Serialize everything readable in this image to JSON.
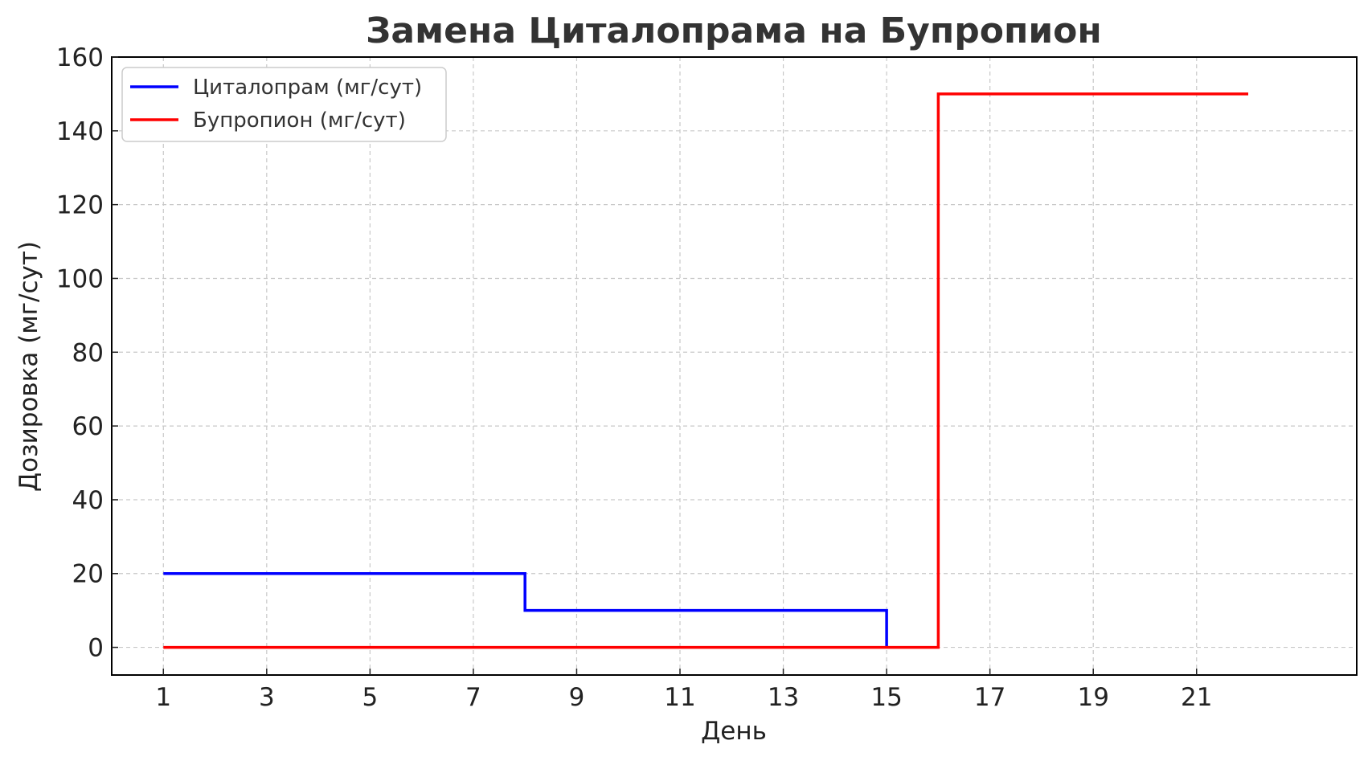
{
  "chart_data": {
    "type": "line",
    "title": "Замена Циталопрама на Бупропион",
    "xlabel": "День",
    "ylabel": "Дозировка (мг/сут)",
    "xlim": [
      0,
      24.1
    ],
    "ylim": [
      -7.5,
      160
    ],
    "xticks": [
      1,
      3,
      5,
      7,
      9,
      11,
      13,
      15,
      17,
      19,
      21
    ],
    "yticks": [
      0,
      20,
      40,
      60,
      80,
      100,
      120,
      140,
      160
    ],
    "grid": true,
    "legend_position": "top-left",
    "step_where": "post",
    "series": [
      {
        "name": "Циталопрам (мг/сут)",
        "color": "#0000ff",
        "x": [
          1,
          2,
          3,
          4,
          5,
          6,
          7,
          8,
          9,
          10,
          11,
          12,
          13,
          14,
          15
        ],
        "y": [
          20,
          20,
          20,
          20,
          20,
          20,
          20,
          10,
          10,
          10,
          10,
          10,
          10,
          10,
          0
        ]
      },
      {
        "name": "Бупропион (мг/сут)",
        "color": "#ff0000",
        "x": [
          1,
          2,
          3,
          4,
          5,
          6,
          7,
          8,
          9,
          10,
          11,
          12,
          13,
          14,
          15,
          16,
          17,
          18,
          19,
          20,
          21,
          22
        ],
        "y": [
          0,
          0,
          0,
          0,
          0,
          0,
          0,
          0,
          0,
          0,
          0,
          0,
          0,
          0,
          0,
          150,
          150,
          150,
          150,
          150,
          150,
          150
        ]
      }
    ]
  }
}
